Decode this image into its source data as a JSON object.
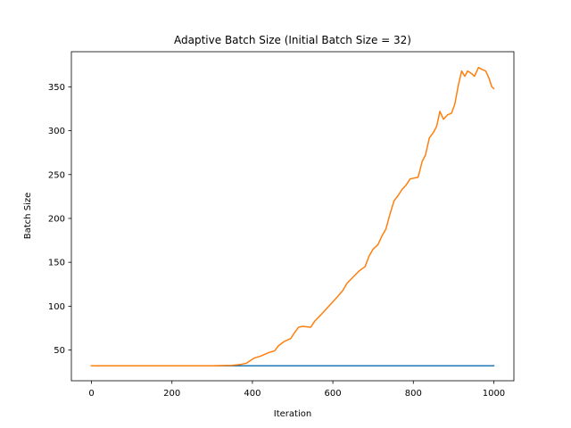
{
  "chart_data": {
    "type": "line",
    "title": "Adaptive Batch Size (Initial Batch Size = 32)",
    "xlabel": "Iteration",
    "ylabel": "Batch Size",
    "xlim": [
      -50,
      1050
    ],
    "ylim": [
      15,
      390
    ],
    "xticks": [
      0,
      200,
      400,
      600,
      800,
      1000
    ],
    "yticks": [
      50,
      100,
      150,
      200,
      250,
      300,
      350
    ],
    "grid": false,
    "legend": "none",
    "series": [
      {
        "color": "#1f77b4",
        "points": [
          [
            0,
            32
          ],
          [
            1000,
            32
          ]
        ]
      },
      {
        "color": "#ff7f0e",
        "points": [
          [
            0,
            32
          ],
          [
            100,
            32
          ],
          [
            200,
            32
          ],
          [
            300,
            32
          ],
          [
            350,
            32.5
          ],
          [
            370,
            33.5
          ],
          [
            385,
            35
          ],
          [
            395,
            38
          ],
          [
            405,
            41
          ],
          [
            420,
            43
          ],
          [
            440,
            47
          ],
          [
            455,
            49
          ],
          [
            465,
            55
          ],
          [
            480,
            60
          ],
          [
            495,
            63
          ],
          [
            505,
            70
          ],
          [
            515,
            76
          ],
          [
            525,
            77
          ],
          [
            545,
            76
          ],
          [
            555,
            83
          ],
          [
            570,
            90
          ],
          [
            590,
            100
          ],
          [
            610,
            110
          ],
          [
            625,
            118
          ],
          [
            635,
            126
          ],
          [
            650,
            133
          ],
          [
            665,
            140
          ],
          [
            680,
            145
          ],
          [
            690,
            157
          ],
          [
            700,
            165
          ],
          [
            712,
            170
          ],
          [
            722,
            180
          ],
          [
            732,
            188
          ],
          [
            742,
            205
          ],
          [
            752,
            220
          ],
          [
            762,
            226
          ],
          [
            772,
            233
          ],
          [
            782,
            238
          ],
          [
            792,
            245
          ],
          [
            812,
            247
          ],
          [
            822,
            265
          ],
          [
            830,
            272
          ],
          [
            840,
            292
          ],
          [
            850,
            298
          ],
          [
            858,
            305
          ],
          [
            866,
            322
          ],
          [
            875,
            313
          ],
          [
            885,
            318
          ],
          [
            895,
            320
          ],
          [
            903,
            330
          ],
          [
            912,
            352
          ],
          [
            920,
            368
          ],
          [
            928,
            362
          ],
          [
            935,
            368
          ],
          [
            945,
            365
          ],
          [
            952,
            362
          ],
          [
            962,
            372
          ],
          [
            970,
            370
          ],
          [
            980,
            368
          ],
          [
            988,
            360
          ],
          [
            995,
            350
          ],
          [
            1000,
            348
          ]
        ]
      }
    ]
  }
}
